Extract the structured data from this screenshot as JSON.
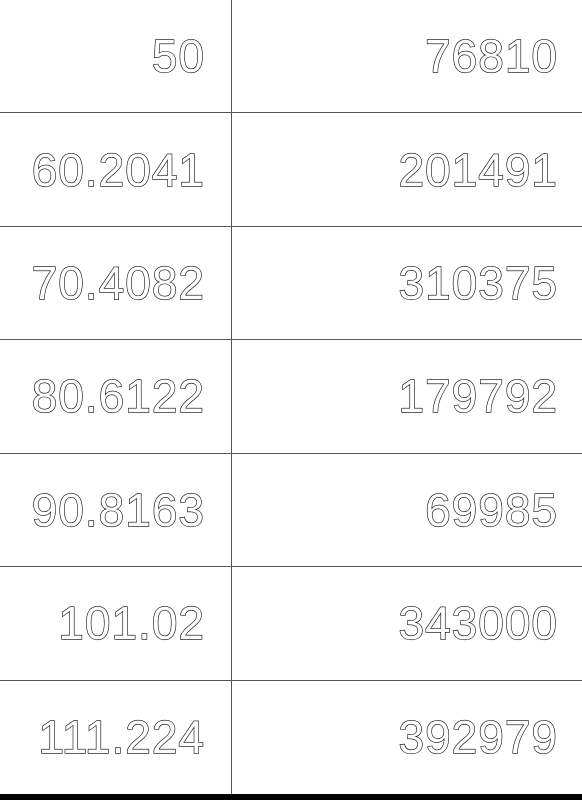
{
  "chart_data": {
    "type": "table",
    "rows": [
      {
        "x": "50",
        "y": "76810"
      },
      {
        "x": "60.2041",
        "y": "201491"
      },
      {
        "x": "70.4082",
        "y": "310375"
      },
      {
        "x": "80.6122",
        "y": "179792"
      },
      {
        "x": "90.8163",
        "y": "69985"
      },
      {
        "x": "101.02",
        "y": "343000"
      },
      {
        "x": "111.224",
        "y": "392979"
      }
    ]
  }
}
